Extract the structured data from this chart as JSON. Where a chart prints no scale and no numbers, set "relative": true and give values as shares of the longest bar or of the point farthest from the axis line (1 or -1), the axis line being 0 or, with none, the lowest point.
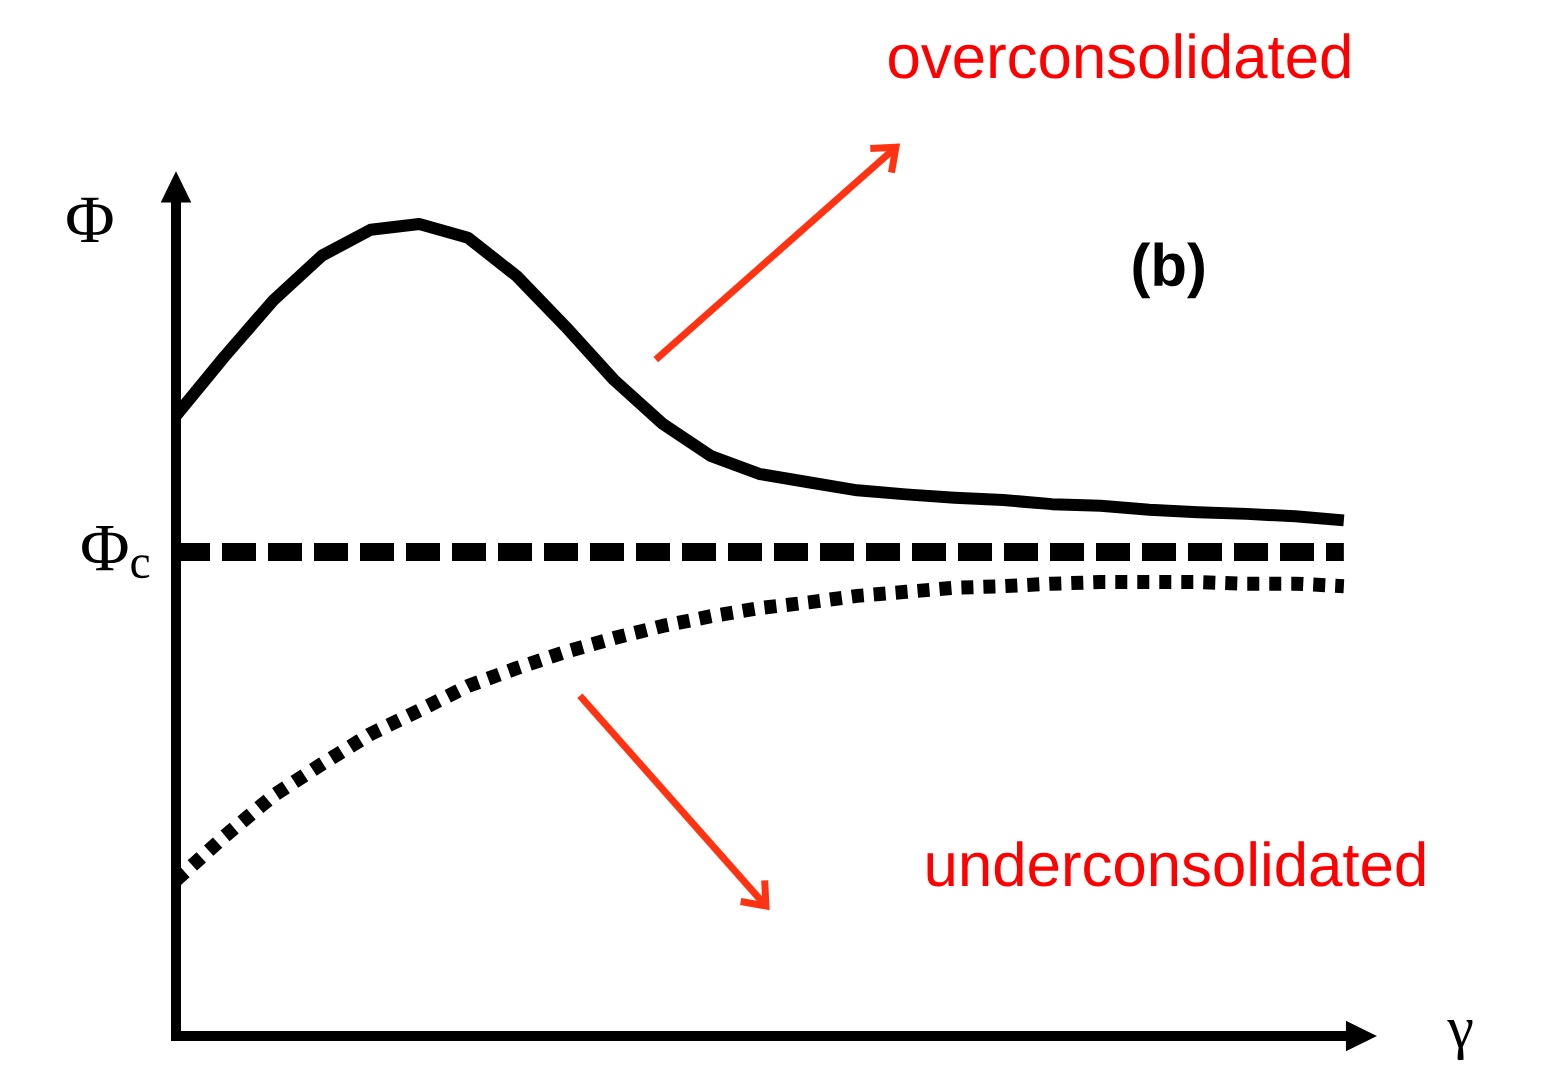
{
  "chart_data": {
    "type": "line",
    "relative": true,
    "ylabel": "Φ",
    "xlabel": "γ",
    "categories": [
      null,
      null,
      null,
      null,
      null,
      null,
      null,
      null,
      null,
      null,
      null,
      null,
      null,
      null,
      null,
      null,
      null,
      null,
      null,
      null,
      null,
      null,
      null,
      null,
      null
    ],
    "series": [
      {
        "color": "#000000",
        "line_style": "solid",
        "values": [
          0.764,
          0.837,
          0.906,
          0.961,
          0.993,
          1,
          0.983,
          0.936,
          0.874,
          0.808,
          0.754,
          0.714,
          0.692,
          0.682,
          0.672,
          0.667,
          0.663,
          0.66,
          0.655,
          0.653,
          0.648,
          0.645,
          0.643,
          0.64,
          0.635
        ]
      },
      {
        "color": "#000000",
        "line_style": "dotted",
        "values": [
          0.192,
          0.246,
          0.296,
          0.335,
          0.372,
          0.401,
          0.431,
          0.453,
          0.473,
          0.49,
          0.505,
          0.517,
          0.527,
          0.534,
          0.542,
          0.547,
          0.552,
          0.554,
          0.557,
          0.559,
          0.559,
          0.559,
          0.557,
          0.557,
          0.554
        ]
      }
    ],
    "ref_lines": [
      {
        "axis": "y",
        "value": 0.596,
        "label": "Φ$_{c}$",
        "color": "#000000",
        "line_style": "dashed"
      }
    ],
    "annotations": [
      "overconsolidated",
      "underconsolidated",
      "(b)"
    ]
  }
}
